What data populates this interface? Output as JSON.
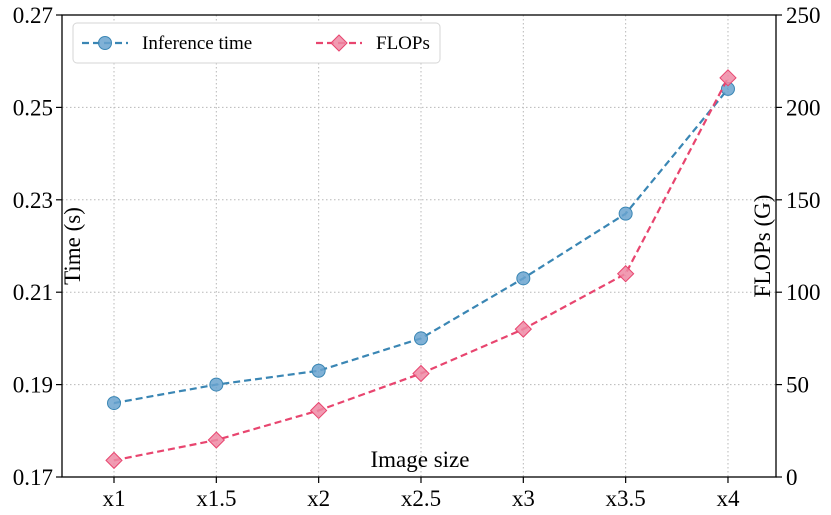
{
  "chart_data": {
    "type": "line",
    "title": "",
    "xlabel": "Image size",
    "ylabel_left": "Time (s)",
    "ylabel_right": "FLOPs (G)",
    "categories": [
      "x1",
      "x1.5",
      "x2",
      "x2.5",
      "x3",
      "x3.5",
      "x4"
    ],
    "y_left": {
      "lim": [
        0.17,
        0.27
      ],
      "ticks": [
        0.17,
        0.19,
        0.21,
        0.23,
        0.25,
        0.27
      ],
      "tick_labels": [
        "0.17",
        "0.19",
        "0.21",
        "0.23",
        "0.25",
        "0.27"
      ]
    },
    "y_right": {
      "lim": [
        0,
        250
      ],
      "ticks": [
        0,
        50,
        100,
        150,
        200,
        250
      ],
      "tick_labels": [
        "0",
        "50",
        "100",
        "150",
        "200",
        "250"
      ]
    },
    "grid": true,
    "legend_position": "top-left",
    "series": [
      {
        "name": "Inference time",
        "axis": "left",
        "color": "#3a86b4",
        "marker_fill": "#6aa3cf",
        "marker": "circle",
        "line_style": "dashed",
        "values": [
          0.186,
          0.19,
          0.193,
          0.2,
          0.213,
          0.227,
          0.254
        ]
      },
      {
        "name": "FLOPs",
        "axis": "right",
        "color": "#e8456f",
        "marker_fill": "#ef8aa5",
        "marker": "diamond",
        "line_style": "dashed",
        "values": [
          9,
          20,
          36,
          56,
          80,
          110,
          216
        ]
      }
    ]
  }
}
